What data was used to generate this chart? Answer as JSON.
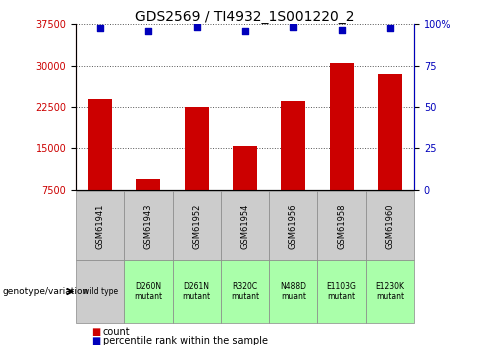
{
  "title": "GDS2569 / TI4932_1S001220_2",
  "samples": [
    "GSM61941",
    "GSM61943",
    "GSM61952",
    "GSM61954",
    "GSM61956",
    "GSM61958",
    "GSM61960"
  ],
  "genotypes": [
    "wild type",
    "D260N\nmutant",
    "D261N\nmutant",
    "R320C\nmutant",
    "N488D\nmuant",
    "E1103G\nmutant",
    "E1230K\nmutant"
  ],
  "counts": [
    24000,
    9500,
    22500,
    15500,
    23500,
    30500,
    28500
  ],
  "pct_rank_y": [
    36800,
    36200,
    36900,
    36200,
    36900,
    36500,
    36800
  ],
  "ylim_left": [
    7500,
    37500
  ],
  "ylim_right": [
    0,
    100
  ],
  "yticks_left": [
    7500,
    15000,
    22500,
    30000,
    37500
  ],
  "yticks_right": [
    0,
    25,
    50,
    75,
    100
  ],
  "bar_color": "#cc0000",
  "dot_color": "#0000bb",
  "left_axis_color": "#cc0000",
  "right_axis_color": "#0000bb",
  "bar_width": 0.5,
  "geno_colors": [
    "#cccccc",
    "#aaffaa",
    "#aaffaa",
    "#aaffaa",
    "#aaffaa",
    "#aaffaa",
    "#aaffaa"
  ],
  "sample_box_color": "#cccccc",
  "title_fontsize": 10
}
